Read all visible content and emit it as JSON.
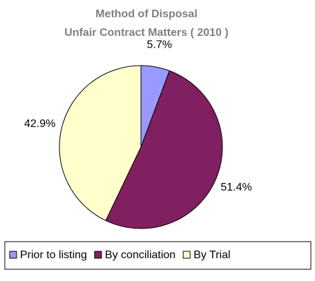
{
  "chart_data": {
    "type": "pie",
    "title": "Method of Disposal",
    "subtitle": "Unfair Contract Matters ( 2010 )",
    "categories": [
      "Prior to listing",
      "By conciliation",
      "By Trial"
    ],
    "values": [
      5.7,
      51.4,
      42.9
    ],
    "value_labels": [
      "5.7%",
      "51.4%",
      "42.9%"
    ],
    "colors": [
      "#9999ff",
      "#802060",
      "#ffffcc"
    ],
    "legend": "bottom"
  }
}
